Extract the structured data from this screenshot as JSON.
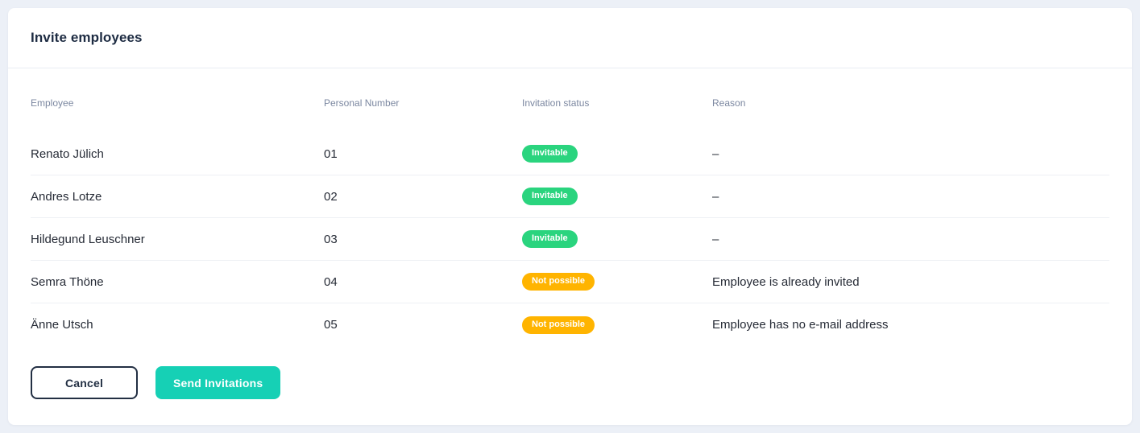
{
  "card": {
    "title": "Invite employees"
  },
  "table": {
    "columns": {
      "employee": "Employee",
      "personal_number": "Personal Number",
      "invitation_status": "Invitation status",
      "reason": "Reason"
    },
    "rows": [
      {
        "employee": "Renato Jülich",
        "personal_number": "01",
        "status": "Invitable",
        "status_type": "success",
        "reason": "–"
      },
      {
        "employee": "Andres Lotze",
        "personal_number": "02",
        "status": "Invitable",
        "status_type": "success",
        "reason": "–"
      },
      {
        "employee": "Hildegund Leuschner",
        "personal_number": "03",
        "status": "Invitable",
        "status_type": "success",
        "reason": "–"
      },
      {
        "employee": "Semra Thöne",
        "personal_number": "04",
        "status": "Not possible",
        "status_type": "warning",
        "reason": "Employee is already invited"
      },
      {
        "employee": "Änne Utsch",
        "personal_number": "05",
        "status": "Not possible",
        "status_type": "warning",
        "reason": "Employee has no e-mail address"
      }
    ]
  },
  "actions": {
    "cancel_label": "Cancel",
    "send_label": "Send Invitations"
  },
  "colors": {
    "status_success": "#2ad47e",
    "status_warning": "#ffb400",
    "accent": "#16d0b5"
  }
}
